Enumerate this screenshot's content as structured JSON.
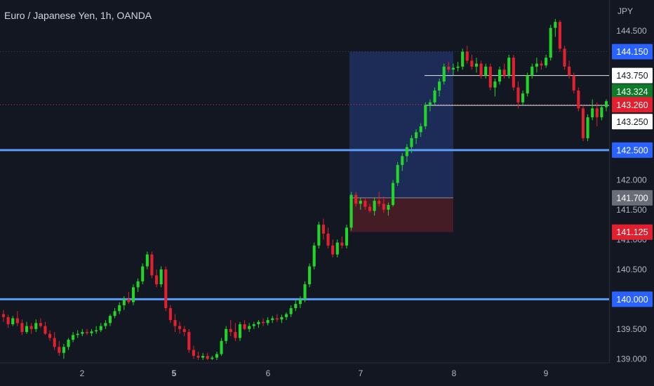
{
  "header": {
    "title": "Euro / Japanese Yen, 1h, OANDA",
    "currency": "JPY"
  },
  "colors": {
    "background": "#131722",
    "up": "#22d629",
    "down": "#e5202e",
    "level_line": "#5b9cf6",
    "profit_zone": "#1e2f5c",
    "loss_zone": "#4a1d27",
    "label_blue": "#2962ff",
    "label_green": "#0f7b2a",
    "label_red": "#e0202e",
    "label_gray": "#6a6d78",
    "axis_text": "#b2b5be"
  },
  "chart_data": {
    "type": "candlestick",
    "title": "Euro / Japanese Yen, 1h, OANDA",
    "y_unit": "JPY",
    "y_ticks": [
      "144.500",
      "142.000",
      "141.500",
      "141.000",
      "140.500",
      "139.500",
      "139.000"
    ],
    "x_ticks": [
      "2",
      "5",
      "6",
      "7",
      "8",
      "9"
    ],
    "ylim": [
      138.98,
      144.97
    ],
    "grid": false,
    "price_labels": [
      {
        "value": "144.150",
        "style": "blue"
      },
      {
        "value": "143.750",
        "style": "white"
      },
      {
        "value": "143.324",
        "style": "green"
      },
      {
        "value": "143.260",
        "style": "red"
      },
      {
        "value": "143.250",
        "style": "white"
      },
      {
        "value": "142.500",
        "style": "blue"
      },
      {
        "value": "141.700",
        "style": "gray"
      },
      {
        "value": "141.125",
        "style": "red"
      },
      {
        "value": "140.000",
        "style": "blue"
      }
    ],
    "horizontal_levels": [
      142.5,
      140.0
    ],
    "dotted_levels": [
      144.15,
      143.26
    ],
    "position_tool": {
      "entry": 141.7,
      "target": 144.15,
      "stop": 141.125
    },
    "series": [
      {
        "name": "",
        "values": [
          [
            139.75,
            139.82,
            139.62,
            139.7
          ],
          [
            139.7,
            139.74,
            139.52,
            139.58
          ],
          [
            139.58,
            139.72,
            139.55,
            139.68
          ],
          [
            139.68,
            139.8,
            139.55,
            139.6
          ],
          [
            139.6,
            139.66,
            139.4,
            139.45
          ],
          [
            139.45,
            139.62,
            139.42,
            139.55
          ],
          [
            139.55,
            139.6,
            139.42,
            139.5
          ],
          [
            139.5,
            139.66,
            139.45,
            139.6
          ],
          [
            139.6,
            139.68,
            139.52,
            139.55
          ],
          [
            139.55,
            139.62,
            139.4,
            139.42
          ],
          [
            139.42,
            139.48,
            139.3,
            139.35
          ],
          [
            139.35,
            139.45,
            139.15,
            139.2
          ],
          [
            139.2,
            139.3,
            139.05,
            139.1
          ],
          [
            139.1,
            139.25,
            139.0,
            139.2
          ],
          [
            139.2,
            139.35,
            139.15,
            139.32
          ],
          [
            139.32,
            139.45,
            139.28,
            139.4
          ],
          [
            139.4,
            139.48,
            139.35,
            139.42
          ],
          [
            139.42,
            139.5,
            139.38,
            139.45
          ],
          [
            139.45,
            139.5,
            139.4,
            139.43
          ],
          [
            139.43,
            139.5,
            139.38,
            139.46
          ],
          [
            139.46,
            139.55,
            139.42,
            139.48
          ],
          [
            139.48,
            139.6,
            139.45,
            139.55
          ],
          [
            139.55,
            139.65,
            139.5,
            139.6
          ],
          [
            139.6,
            139.75,
            139.55,
            139.72
          ],
          [
            139.72,
            139.85,
            139.68,
            139.8
          ],
          [
            139.8,
            139.95,
            139.75,
            139.9
          ],
          [
            139.9,
            140.05,
            139.82,
            140.0
          ],
          [
            140.0,
            140.12,
            139.92,
            139.95
          ],
          [
            139.95,
            140.25,
            139.9,
            140.2
          ],
          [
            140.2,
            140.35,
            140.12,
            140.3
          ],
          [
            140.3,
            140.6,
            140.25,
            140.55
          ],
          [
            140.55,
            140.8,
            140.5,
            140.75
          ],
          [
            140.75,
            140.8,
            140.35,
            140.4
          ],
          [
            140.4,
            140.5,
            140.2,
            140.25
          ],
          [
            140.25,
            140.55,
            140.2,
            140.5
          ],
          [
            140.5,
            140.55,
            139.8,
            139.85
          ],
          [
            139.85,
            139.9,
            139.6,
            139.65
          ],
          [
            139.65,
            139.75,
            139.45,
            139.55
          ],
          [
            139.55,
            139.62,
            139.42,
            139.5
          ],
          [
            139.5,
            139.55,
            139.38,
            139.45
          ],
          [
            139.45,
            139.5,
            139.1,
            139.15
          ],
          [
            139.15,
            139.22,
            139.0,
            139.05
          ],
          [
            139.05,
            139.12,
            138.98,
            139.02
          ],
          [
            139.02,
            139.1,
            138.98,
            139.05
          ],
          [
            139.05,
            139.1,
            138.98,
            139.0
          ],
          [
            139.0,
            139.05,
            138.98,
            139.02
          ],
          [
            139.02,
            139.12,
            138.98,
            139.08
          ],
          [
            139.08,
            139.35,
            139.05,
            139.3
          ],
          [
            139.3,
            139.55,
            139.25,
            139.5
          ],
          [
            139.5,
            139.65,
            139.38,
            139.45
          ],
          [
            139.45,
            139.6,
            139.3,
            139.35
          ],
          [
            139.35,
            139.62,
            139.3,
            139.58
          ],
          [
            139.58,
            139.65,
            139.48,
            139.5
          ],
          [
            139.5,
            139.6,
            139.45,
            139.55
          ],
          [
            139.55,
            139.62,
            139.5,
            139.58
          ],
          [
            139.58,
            139.65,
            139.52,
            139.62
          ],
          [
            139.62,
            139.68,
            139.55,
            139.6
          ],
          [
            139.6,
            139.7,
            139.56,
            139.65
          ],
          [
            139.65,
            139.72,
            139.6,
            139.68
          ],
          [
            139.68,
            139.75,
            139.62,
            139.66
          ],
          [
            139.66,
            139.74,
            139.6,
            139.7
          ],
          [
            139.7,
            139.78,
            139.65,
            139.75
          ],
          [
            139.75,
            139.9,
            139.7,
            139.85
          ],
          [
            139.85,
            139.98,
            139.8,
            139.92
          ],
          [
            139.92,
            140.05,
            139.85,
            140.0
          ],
          [
            140.0,
            140.3,
            139.95,
            140.25
          ],
          [
            140.25,
            140.6,
            140.2,
            140.55
          ],
          [
            140.55,
            140.95,
            140.5,
            140.9
          ],
          [
            140.9,
            141.3,
            140.85,
            141.25
          ],
          [
            141.25,
            141.35,
            141.0,
            141.1
          ],
          [
            141.1,
            141.2,
            140.85,
            140.9
          ],
          [
            140.9,
            141.0,
            140.7,
            140.75
          ],
          [
            140.75,
            141.0,
            140.7,
            140.95
          ],
          [
            140.95,
            141.05,
            140.85,
            140.9
          ],
          [
            140.9,
            141.25,
            140.85,
            141.2
          ],
          [
            141.2,
            141.8,
            141.15,
            141.75
          ],
          [
            141.75,
            141.8,
            141.55,
            141.6
          ],
          [
            141.6,
            141.7,
            141.5,
            141.65
          ],
          [
            141.65,
            141.7,
            141.5,
            141.55
          ],
          [
            141.55,
            141.6,
            141.45,
            141.48
          ],
          [
            141.48,
            141.7,
            141.4,
            141.65
          ],
          [
            141.65,
            141.8,
            141.55,
            141.6
          ],
          [
            141.6,
            141.72,
            141.45,
            141.5
          ],
          [
            141.5,
            141.62,
            141.4,
            141.58
          ],
          [
            141.58,
            142.0,
            141.55,
            141.95
          ],
          [
            141.95,
            142.3,
            141.9,
            142.25
          ],
          [
            142.25,
            142.45,
            142.15,
            142.4
          ],
          [
            142.4,
            142.6,
            142.3,
            142.55
          ],
          [
            142.55,
            142.75,
            142.45,
            142.7
          ],
          [
            142.7,
            142.85,
            142.6,
            142.8
          ],
          [
            142.8,
            142.95,
            142.72,
            142.9
          ],
          [
            142.9,
            143.3,
            142.85,
            143.25
          ],
          [
            143.25,
            143.35,
            143.15,
            143.3
          ],
          [
            143.3,
            143.55,
            143.25,
            143.5
          ],
          [
            143.5,
            143.7,
            143.4,
            143.65
          ],
          [
            143.65,
            143.95,
            143.6,
            143.9
          ],
          [
            143.9,
            143.98,
            143.8,
            143.85
          ],
          [
            143.85,
            143.95,
            143.75,
            143.88
          ],
          [
            143.88,
            143.98,
            143.82,
            143.9
          ],
          [
            143.9,
            144.2,
            143.85,
            144.15
          ],
          [
            144.15,
            144.25,
            143.95,
            144.0
          ],
          [
            144.0,
            144.1,
            143.85,
            143.9
          ],
          [
            143.9,
            144.05,
            143.8,
            143.95
          ],
          [
            143.95,
            144.0,
            143.7,
            143.75
          ],
          [
            143.75,
            143.95,
            143.7,
            143.9
          ],
          [
            143.9,
            143.95,
            143.5,
            143.55
          ],
          [
            143.55,
            143.7,
            143.4,
            143.65
          ],
          [
            143.65,
            143.9,
            143.6,
            143.85
          ],
          [
            143.85,
            143.95,
            143.7,
            143.75
          ],
          [
            143.75,
            144.1,
            143.7,
            144.05
          ],
          [
            144.05,
            144.1,
            143.5,
            143.55
          ],
          [
            143.55,
            143.65,
            143.2,
            143.3
          ],
          [
            143.3,
            143.5,
            143.25,
            143.45
          ],
          [
            143.45,
            143.8,
            143.4,
            143.75
          ],
          [
            143.75,
            143.95,
            143.7,
            143.9
          ],
          [
            143.9,
            144.05,
            143.8,
            143.95
          ],
          [
            143.95,
            144.0,
            143.85,
            143.92
          ],
          [
            143.92,
            144.1,
            143.88,
            144.05
          ],
          [
            144.05,
            144.6,
            144.0,
            144.55
          ],
          [
            144.55,
            144.7,
            144.4,
            144.65
          ],
          [
            144.65,
            144.68,
            144.15,
            144.2
          ],
          [
            144.2,
            144.25,
            143.85,
            143.9
          ],
          [
            143.9,
            144.0,
            143.7,
            143.75
          ],
          [
            143.75,
            143.8,
            143.45,
            143.5
          ],
          [
            143.5,
            143.55,
            143.15,
            143.2
          ],
          [
            143.2,
            143.25,
            142.65,
            142.7
          ],
          [
            142.7,
            143.1,
            142.65,
            143.05
          ],
          [
            143.05,
            143.35,
            143.0,
            143.2
          ],
          [
            143.2,
            143.3,
            142.9,
            143.05
          ],
          [
            143.05,
            143.25,
            143.0,
            143.22
          ],
          [
            143.22,
            143.35,
            143.15,
            143.32
          ]
        ]
      }
    ]
  }
}
